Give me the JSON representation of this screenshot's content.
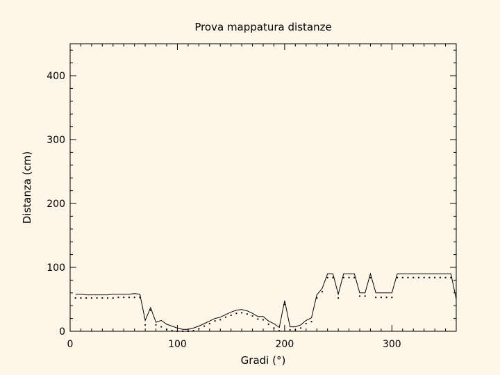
{
  "chart_data": {
    "type": "line",
    "title": "Prova mappatura distanze",
    "xlabel": "Gradi (°)",
    "ylabel": "Distanza (cm)",
    "xlim": [
      0,
      360
    ],
    "ylim": [
      0,
      450
    ],
    "x_ticks": [
      0,
      100,
      200,
      300
    ],
    "y_ticks": [
      0,
      100,
      200,
      300,
      400
    ],
    "x_tick_labels": [
      "0",
      "100",
      "200",
      "300"
    ],
    "y_tick_labels": [
      "0",
      "100",
      "200",
      "300",
      "400"
    ],
    "series": [
      {
        "name": "solid",
        "style": "solid",
        "x": [
          5,
          10,
          15,
          20,
          25,
          30,
          35,
          40,
          45,
          50,
          55,
          60,
          65,
          70,
          75,
          80,
          85,
          90,
          95,
          100,
          105,
          110,
          115,
          120,
          125,
          130,
          135,
          140,
          145,
          150,
          155,
          160,
          165,
          170,
          175,
          180,
          185,
          190,
          195,
          200,
          205,
          210,
          215,
          220,
          225,
          230,
          235,
          240,
          245,
          250,
          255,
          260,
          265,
          270,
          275,
          280,
          285,
          290,
          295,
          300,
          305,
          310,
          315,
          320,
          325,
          330,
          335,
          340,
          345,
          350,
          355,
          360
        ],
        "y": [
          58,
          58,
          57,
          57,
          57,
          57,
          57,
          58,
          58,
          58,
          58,
          59,
          58,
          17,
          37,
          14,
          17,
          11,
          8,
          5,
          3,
          3,
          5,
          8,
          12,
          16,
          20,
          22,
          26,
          30,
          33,
          34,
          32,
          28,
          23,
          23,
          16,
          12,
          6,
          48,
          7,
          7,
          10,
          17,
          21,
          57,
          67,
          90,
          90,
          58,
          90,
          90,
          90,
          60,
          60,
          90,
          60,
          60,
          60,
          60,
          90,
          90,
          90,
          90,
          90,
          90,
          90,
          90,
          90,
          90,
          90,
          50
        ]
      },
      {
        "name": "dotted",
        "style": "dotted",
        "x": [
          5,
          10,
          15,
          20,
          25,
          30,
          35,
          40,
          45,
          50,
          55,
          60,
          65,
          70,
          75,
          80,
          85,
          90,
          95,
          100,
          105,
          110,
          115,
          120,
          125,
          130,
          135,
          140,
          145,
          150,
          155,
          160,
          165,
          170,
          175,
          180,
          185,
          190,
          195,
          200,
          205,
          210,
          215,
          220,
          225,
          230,
          235,
          240,
          245,
          250,
          255,
          260,
          265,
          270,
          275,
          280,
          285,
          290,
          295,
          300,
          305,
          310,
          315,
          320,
          325,
          330,
          335,
          340,
          345,
          350,
          355
        ],
        "y": [
          52,
          52,
          52,
          52,
          52,
          52,
          52,
          52,
          53,
          53,
          53,
          53,
          53,
          10,
          33,
          10,
          7,
          3,
          1,
          0,
          0,
          0,
          1,
          4,
          8,
          12,
          16,
          18,
          22,
          25,
          28,
          29,
          27,
          24,
          19,
          18,
          11,
          5,
          1,
          42,
          2,
          2,
          5,
          12,
          15,
          52,
          62,
          84,
          84,
          52,
          84,
          84,
          84,
          55,
          55,
          84,
          53,
          53,
          53,
          53,
          84,
          84,
          84,
          84,
          84,
          84,
          84,
          84,
          84,
          84,
          84
        ]
      }
    ]
  }
}
